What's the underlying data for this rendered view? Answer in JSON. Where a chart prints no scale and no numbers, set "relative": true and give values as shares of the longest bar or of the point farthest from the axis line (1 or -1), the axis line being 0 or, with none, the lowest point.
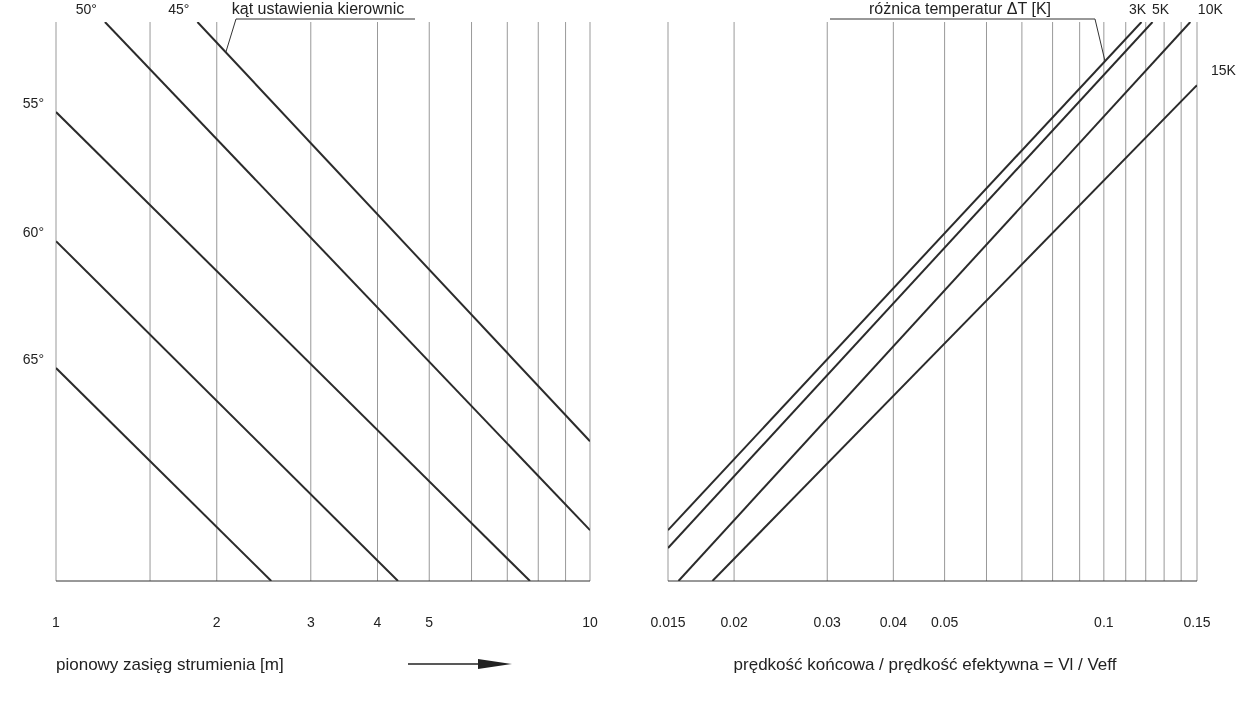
{
  "chart_data": [
    {
      "type": "line",
      "relative": true,
      "log": "x",
      "xlim": [
        1,
        10
      ],
      "xticks": [
        1,
        {
          "value": 1.5,
          "label": null
        },
        2,
        3,
        4,
        5,
        {
          "value": 6,
          "label": null
        },
        {
          "value": 7,
          "label": null
        },
        {
          "value": 8,
          "label": null
        },
        {
          "value": 9,
          "label": null
        },
        10
      ],
      "grid": "x",
      "xlabel": "pionowy zasięg strumienia [m]",
      "annotations": [
        {
          "text": "kąt ustawienia kierownic",
          "x": 2.08,
          "y": 0.946
        }
      ],
      "series": [
        {
          "name": "45°",
          "color": "#2b2b2b",
          "x": [
            1.84,
            10
          ],
          "values": [
            1,
            0.25
          ]
        },
        {
          "name": "50°",
          "color": "#2b2b2b",
          "x": [
            1.235,
            10
          ],
          "values": [
            1,
            0.091
          ]
        },
        {
          "name": "55°",
          "color": "#2b2b2b",
          "x": [
            1,
            7.72
          ],
          "values": [
            0.839,
            0
          ]
        },
        {
          "name": "60°",
          "color": "#2b2b2b",
          "x": [
            1,
            4.37
          ],
          "values": [
            0.608,
            0
          ]
        },
        {
          "name": "65°",
          "color": "#2b2b2b",
          "x": [
            1,
            2.53
          ],
          "values": [
            0.381,
            0
          ]
        }
      ]
    },
    {
      "type": "line",
      "relative": true,
      "log": "x",
      "xlim": [
        0.015,
        0.15
      ],
      "xticks": [
        0.015,
        0.02,
        0.03,
        0.04,
        0.05,
        {
          "value": 0.06,
          "label": null
        },
        {
          "value": 0.07,
          "label": null
        },
        {
          "value": 0.08,
          "label": null
        },
        {
          "value": 0.09,
          "label": null
        },
        0.1,
        {
          "value": 0.11,
          "label": null
        },
        {
          "value": 0.12,
          "label": null
        },
        {
          "value": 0.13,
          "label": null
        },
        {
          "value": 0.14,
          "label": null
        },
        0.15
      ],
      "grid": "x",
      "xlabel": "prędkość końcowa / prędkość efektywna = Vl / Veff",
      "annotations": [
        {
          "text": "różnica temperatur ΔT [K]",
          "x": 0.1005,
          "y": 0.93
        }
      ],
      "series": [
        {
          "name": "3K",
          "color": "#2b2b2b",
          "x": [
            0.015,
            0.1178
          ],
          "values": [
            0.091,
            1
          ]
        },
        {
          "name": "5K",
          "color": "#2b2b2b",
          "x": [
            0.015,
            0.1236
          ],
          "values": [
            0.059,
            1
          ]
        },
        {
          "name": "10K",
          "color": "#2b2b2b",
          "x": [
            0.0157,
            0.1457
          ],
          "values": [
            0,
            1
          ]
        },
        {
          "name": "15K",
          "color": "#2b2b2b",
          "x": [
            0.0182,
            0.15
          ],
          "values": [
            0,
            0.887
          ]
        }
      ]
    }
  ]
}
